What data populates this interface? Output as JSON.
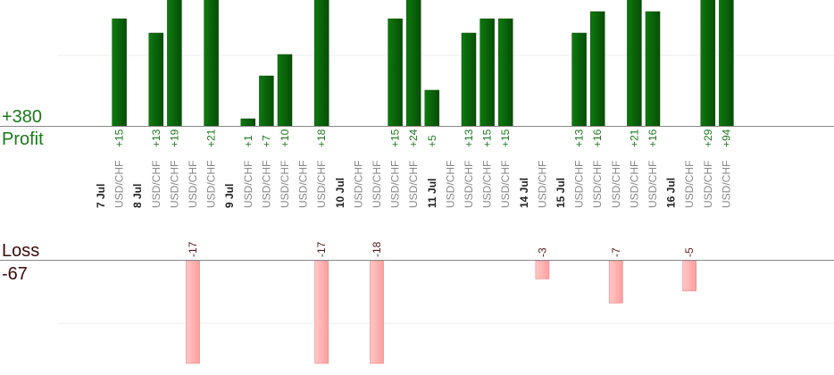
{
  "summary": {
    "profit_total": "+380",
    "profit_label": "Profit",
    "loss_label": "Loss",
    "loss_total": "-67"
  },
  "colors": {
    "profit_bar": "#0b650b",
    "profit_text": "#1a7a1a",
    "loss_bar": "#ffb3b3",
    "loss_text": "#5a1a1a",
    "date_text": "#222222",
    "symbol_text": "#888888",
    "baseline": "#888888",
    "gridline": "#eeeeee"
  },
  "chart_data": {
    "type": "bar",
    "categories": [
      "7 Jul",
      "USD/CHF",
      "8 Jul",
      "USD/CHF",
      "USD/CHF",
      "USD/CHF",
      "USD/CHF",
      "9 Jul",
      "USD/CHF",
      "USD/CHF",
      "USD/CHF",
      "USD/CHF",
      "USD/CHF",
      "10 Jul",
      "USD/CHF",
      "USD/CHF",
      "USD/CHF",
      "USD/CHF",
      "11 Jul",
      "USD/CHF",
      "USD/CHF",
      "USD/CHF",
      "USD/CHF",
      "14 Jul",
      "USD/CHF",
      "15 Jul",
      "USD/CHF",
      "USD/CHF",
      "USD/CHF",
      "USD/CHF",
      "USD/CHF",
      "16 Jul",
      "USD/CHF",
      "USD/CHF",
      "USD/CHF"
    ],
    "date_rows": [
      0,
      2,
      7,
      13,
      18,
      23,
      25,
      31
    ],
    "profit": [
      null,
      15,
      null,
      13,
      19,
      null,
      21,
      null,
      1,
      7,
      10,
      null,
      18,
      null,
      null,
      null,
      15,
      24,
      5,
      null,
      13,
      15,
      15,
      null,
      null,
      null,
      13,
      16,
      null,
      21,
      16,
      null,
      null,
      29,
      94
    ],
    "profit_labels": [
      "",
      "+15",
      "",
      "+13",
      "+19",
      "",
      "+21",
      "",
      "+1",
      "+7",
      "+10",
      "",
      "+18",
      "",
      "",
      "",
      "+15",
      "+24",
      "+5",
      "",
      "+13",
      "+15",
      "+15",
      "",
      "",
      "",
      "+13",
      "+16",
      "",
      "+21",
      "+16",
      "",
      "",
      "+29",
      "+94"
    ],
    "loss": [
      null,
      null,
      null,
      null,
      null,
      -17,
      null,
      null,
      null,
      null,
      null,
      null,
      -17,
      null,
      null,
      -18,
      null,
      null,
      null,
      null,
      null,
      null,
      null,
      null,
      -3,
      null,
      null,
      null,
      -7,
      null,
      null,
      null,
      -5,
      null,
      null
    ],
    "loss_labels": [
      "",
      "",
      "",
      "",
      "",
      "-17",
      "",
      "",
      "",
      "",
      "",
      "",
      "-17",
      "",
      "",
      "-18",
      "",
      "",
      "",
      "",
      "",
      "",
      "",
      "",
      "-3",
      "",
      "",
      "",
      "-7",
      "",
      "",
      "",
      "-5",
      "",
      ""
    ],
    "profit_ylim": [
      0,
      18
    ],
    "loss_ylim": [
      -17,
      0
    ]
  }
}
